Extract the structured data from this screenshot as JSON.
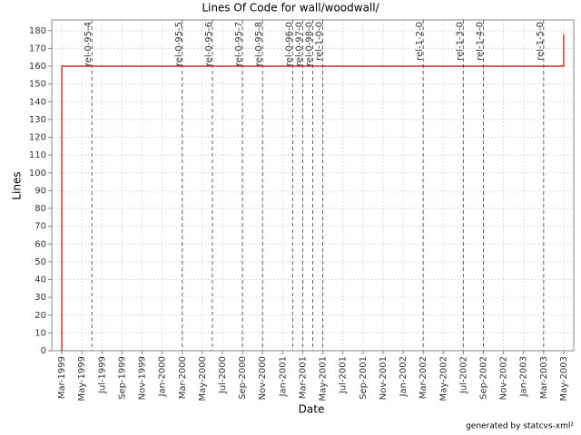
{
  "chart_data": {
    "type": "line",
    "title": "Lines Of Code for wall/woodwall/",
    "x_label": "Date",
    "y_label": "Lines",
    "footer": "generated by statcvs-xml²",
    "x": [
      "1999-03",
      "1999-03",
      "2003-05",
      "2003-05"
    ],
    "values": [
      0,
      160,
      160,
      178
    ],
    "color": "#cc0000",
    "xlim": [
      "1999-02",
      "2003-06"
    ],
    "xticks": [
      {
        "value": "1999-03",
        "label": "Mar-1999"
      },
      {
        "value": "1999-05",
        "label": "May-1999"
      },
      {
        "value": "1999-07",
        "label": "Jul-1999"
      },
      {
        "value": "1999-09",
        "label": "Sep-1999"
      },
      {
        "value": "1999-11",
        "label": "Nov-1999"
      },
      {
        "value": "2000-01",
        "label": "Jan-2000"
      },
      {
        "value": "2000-03",
        "label": "Mar-2000"
      },
      {
        "value": "2000-05",
        "label": "May-2000"
      },
      {
        "value": "2000-07",
        "label": "Jul-2000"
      },
      {
        "value": "2000-09",
        "label": "Sep-2000"
      },
      {
        "value": "2000-11",
        "label": "Nov-2000"
      },
      {
        "value": "2001-01",
        "label": "Jan-2001"
      },
      {
        "value": "2001-03",
        "label": "Mar-2001"
      },
      {
        "value": "2001-05",
        "label": "May-2001"
      },
      {
        "value": "2001-07",
        "label": "Jul-2001"
      },
      {
        "value": "2001-09",
        "label": "Sep-2001"
      },
      {
        "value": "2001-11",
        "label": "Nov-2001"
      },
      {
        "value": "2002-01",
        "label": "Jan-2002"
      },
      {
        "value": "2002-03",
        "label": "Mar-2002"
      },
      {
        "value": "2002-05",
        "label": "May-2002"
      },
      {
        "value": "2002-07",
        "label": "Jul-2002"
      },
      {
        "value": "2002-09",
        "label": "Sep-2002"
      },
      {
        "value": "2002-11",
        "label": "Nov-2002"
      },
      {
        "value": "2003-01",
        "label": "Jan-2003"
      },
      {
        "value": "2003-03",
        "label": "Mar-2003"
      },
      {
        "value": "2003-05",
        "label": "May-2003"
      }
    ],
    "ylim": [
      0,
      186
    ],
    "yticks": [
      0,
      10,
      20,
      30,
      40,
      50,
      60,
      70,
      80,
      90,
      100,
      110,
      120,
      130,
      140,
      150,
      160,
      170,
      180
    ],
    "grid": true,
    "marker_color": "#666666",
    "markers": [
      {
        "x": "1999-06",
        "label": "rel-0-95-4"
      },
      {
        "x": "2000-03",
        "label": "rel-0-95-5"
      },
      {
        "x": "2000-06",
        "label": "rel-0-95-6"
      },
      {
        "x": "2000-09",
        "label": "rel-0-95-7"
      },
      {
        "x": "2000-11",
        "label": "rel-0-95-8"
      },
      {
        "x": "2001-02",
        "label": "rel-0-96-0"
      },
      {
        "x": "2001-03",
        "label": "rel-0-97-0"
      },
      {
        "x": "2001-04",
        "label": "rel-0-98-0"
      },
      {
        "x": "2001-05",
        "label": "rel-1-0-0"
      },
      {
        "x": "2002-03",
        "label": "rel-1-2-0"
      },
      {
        "x": "2002-07",
        "label": "rel-1-3-0"
      },
      {
        "x": "2002-09",
        "label": "rel-1-4-0"
      },
      {
        "x": "2003-03",
        "label": "rel-1-5-0"
      }
    ]
  }
}
